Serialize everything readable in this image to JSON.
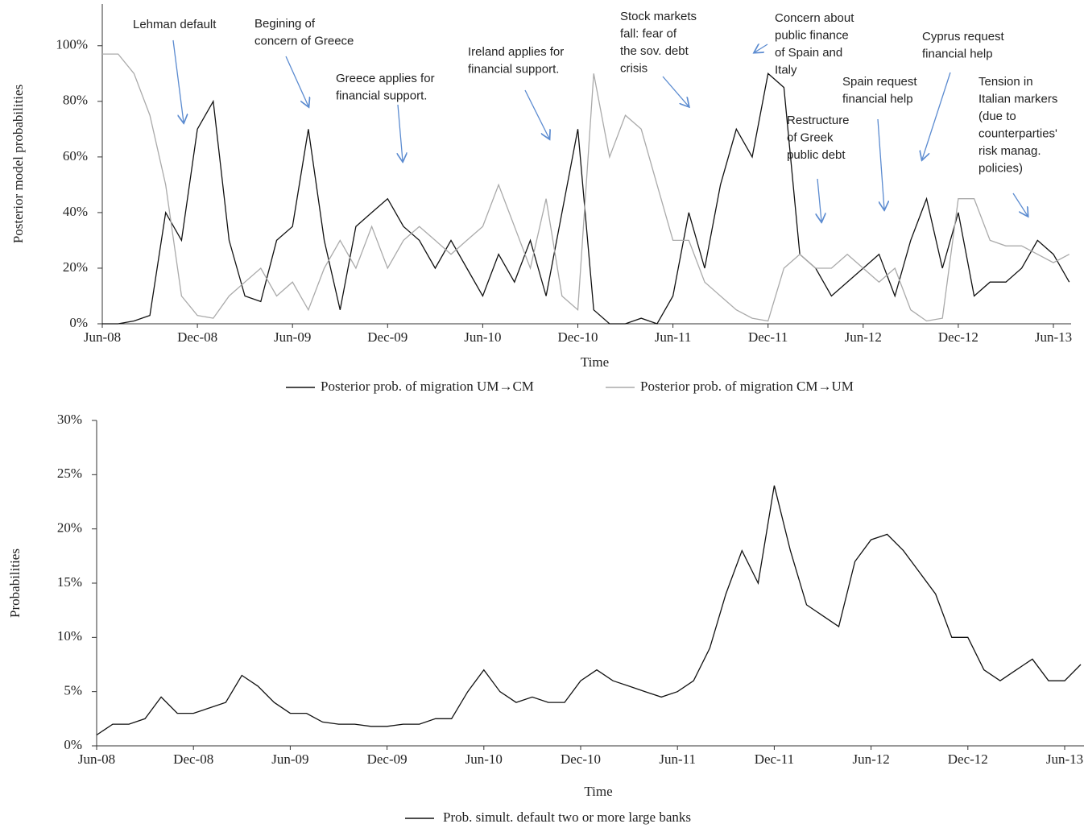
{
  "chart_data": [
    {
      "type": "line",
      "y_label": "Posterior model probabilities",
      "x_label": "Time",
      "categories": [
        "Jun-08",
        null,
        null,
        null,
        null,
        null,
        "Dec-08",
        null,
        null,
        null,
        null,
        null,
        "Jun-09",
        null,
        null,
        null,
        null,
        null,
        "Dec-09",
        null,
        null,
        null,
        null,
        null,
        "Jun-10",
        null,
        null,
        null,
        null,
        null,
        "Dec-10",
        null,
        null,
        null,
        null,
        null,
        "Jun-11",
        null,
        null,
        null,
        null,
        null,
        "Dec-11",
        null,
        null,
        null,
        null,
        null,
        "Jun-12",
        null,
        null,
        null,
        null,
        null,
        "Dec-12",
        null,
        null,
        null,
        null,
        null,
        "Jun-13",
        null
      ],
      "series": [
        {
          "name": "Posterior prob. of migration UM→CM",
          "color": "#111111",
          "values": [
            0,
            0,
            1,
            3,
            40,
            30,
            70,
            80,
            30,
            10,
            8,
            30,
            35,
            70,
            30,
            5,
            35,
            40,
            45,
            35,
            30,
            20,
            30,
            20,
            10,
            25,
            15,
            30,
            10,
            40,
            70,
            5,
            0,
            0,
            2,
            0,
            10,
            40,
            20,
            50,
            70,
            60,
            90,
            85,
            25,
            20,
            10,
            15,
            20,
            25,
            10,
            30,
            45,
            20,
            40,
            10,
            15,
            15,
            20,
            30,
            25,
            15
          ]
        },
        {
          "name": "Posterior prob. of migration CM→UM",
          "color": "#aaaaaa",
          "values": [
            97,
            97,
            90,
            75,
            50,
            10,
            3,
            2,
            10,
            15,
            20,
            10,
            15,
            5,
            20,
            30,
            20,
            35,
            20,
            30,
            35,
            30,
            25,
            30,
            35,
            50,
            35,
            20,
            45,
            10,
            5,
            90,
            60,
            75,
            70,
            50,
            30,
            30,
            15,
            10,
            5,
            2,
            1,
            20,
            25,
            20,
            20,
            25,
            20,
            15,
            20,
            5,
            1,
            2,
            45,
            45,
            30,
            28,
            28,
            25,
            22,
            25
          ]
        }
      ],
      "ylim": [
        0,
        115
      ],
      "yticks": [
        {
          "value": 0,
          "label": "0%"
        },
        {
          "value": 20,
          "label": "20%"
        },
        {
          "value": 40,
          "label": "40%"
        },
        {
          "value": 60,
          "label": "60%"
        },
        {
          "value": 80,
          "label": "80%"
        },
        {
          "value": 100,
          "label": "100%"
        }
      ],
      "annotations": [
        [
          "Lehman default"
        ],
        [
          "Begining of",
          "concern of Greece"
        ],
        [
          "Greece applies for",
          "financial support."
        ],
        [
          "Ireland applies for",
          "financial support."
        ],
        [
          "Stock markets",
          "fall: fear of",
          "the sov. debt",
          "crisis"
        ],
        [
          "Concern about",
          "public finance",
          "of Spain and",
          "Italy"
        ],
        [
          "Restructure",
          "of  Greek",
          "public debt"
        ],
        [
          "Spain request",
          "financial help"
        ],
        [
          "Cyprus request",
          "financial help"
        ],
        [
          "Tension in",
          "Italian markers",
          "(due to",
          "counterparties'",
          "risk manag.",
          "policies)"
        ]
      ]
    },
    {
      "type": "line",
      "y_label": "Probabilities",
      "x_label": "Time",
      "categories": [
        "Jun-08",
        null,
        null,
        null,
        null,
        null,
        "Dec-08",
        null,
        null,
        null,
        null,
        null,
        "Jun-09",
        null,
        null,
        null,
        null,
        null,
        "Dec-09",
        null,
        null,
        null,
        null,
        null,
        "Jun-10",
        null,
        null,
        null,
        null,
        null,
        "Dec-10",
        null,
        null,
        null,
        null,
        null,
        "Jun-11",
        null,
        null,
        null,
        null,
        null,
        "Dec-11",
        null,
        null,
        null,
        null,
        null,
        "Jun-12",
        null,
        null,
        null,
        null,
        null,
        "Dec-12",
        null,
        null,
        null,
        null,
        null,
        "Jun-13",
        null
      ],
      "series": [
        {
          "name": "Prob. simult. default two or more large banks",
          "color": "#111111",
          "values": [
            1,
            2,
            2,
            2.5,
            4.5,
            3,
            3,
            3.5,
            4,
            6.5,
            5.5,
            4,
            3,
            3,
            2.2,
            2,
            2,
            1.8,
            1.8,
            2,
            2,
            2.5,
            2.5,
            5,
            7,
            5,
            4,
            4.5,
            4,
            4,
            6,
            7,
            6,
            5.5,
            5,
            4.5,
            5,
            6,
            9,
            14,
            18,
            15,
            24,
            18,
            13,
            12,
            11,
            17,
            19,
            19.5,
            18,
            16,
            14,
            10,
            10,
            7,
            6,
            7,
            8,
            6,
            6,
            7.5
          ]
        }
      ],
      "ylim": [
        0,
        30
      ],
      "yticks": [
        {
          "value": 0,
          "label": "0%"
        },
        {
          "value": 5,
          "label": "5%"
        },
        {
          "value": 10,
          "label": "10%"
        },
        {
          "value": 15,
          "label": "15%"
        },
        {
          "value": 20,
          "label": "20%"
        },
        {
          "value": 25,
          "label": "25%"
        },
        {
          "value": 30,
          "label": "30%"
        }
      ]
    }
  ]
}
